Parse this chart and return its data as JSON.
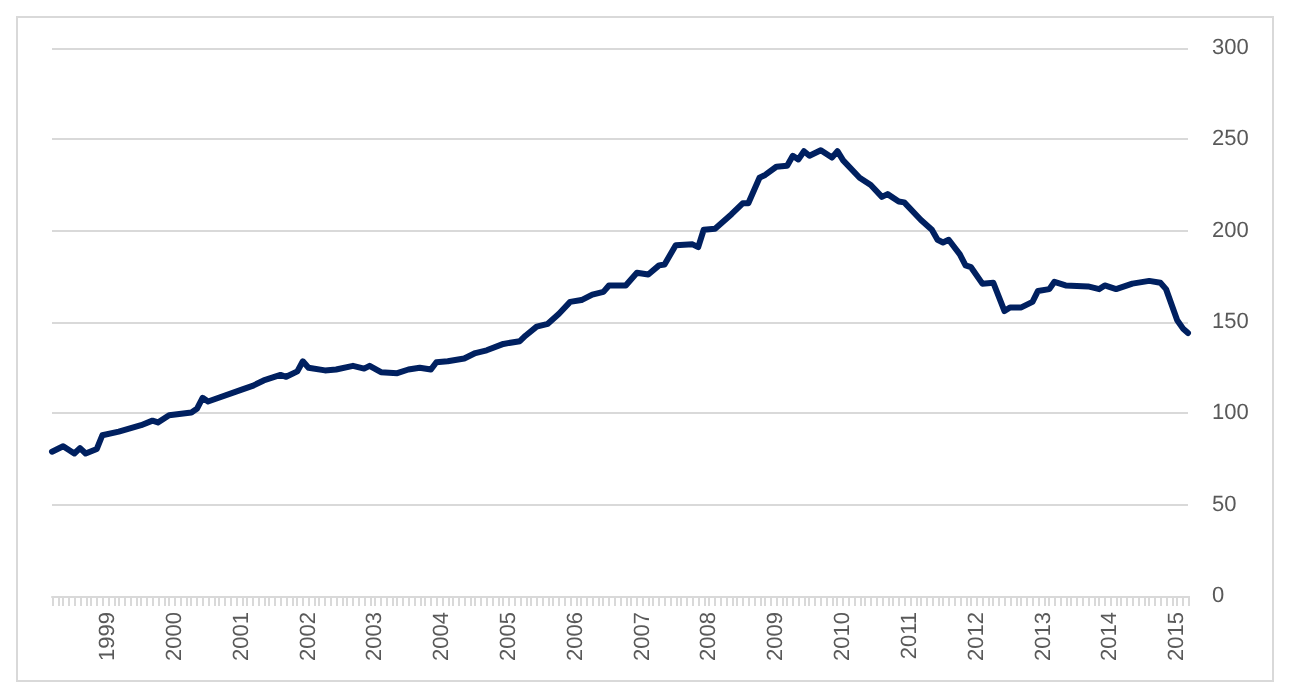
{
  "chart_data": {
    "type": "line",
    "x": [
      "1998-03",
      "1998-05",
      "1998-07",
      "1998-08",
      "1998-09",
      "1998-11",
      "1998-12",
      "1999-03",
      "1999-07",
      "1999-09",
      "1999-10",
      "1999-12",
      "2000-04",
      "2000-05",
      "2000-06",
      "2000-07",
      "2001-01",
      "2001-03",
      "2001-05",
      "2001-08",
      "2001-09",
      "2001-11",
      "2001-12",
      "2002-01",
      "2002-04",
      "2002-06",
      "2002-09",
      "2002-11",
      "2002-12",
      "2003-02",
      "2003-05",
      "2003-07",
      "2003-09",
      "2003-11",
      "2003-12",
      "2004-02",
      "2004-05",
      "2004-07",
      "2004-09",
      "2004-12",
      "2005-03",
      "2005-04",
      "2005-06",
      "2005-08",
      "2005-10",
      "2005-12",
      "2006-02",
      "2006-04",
      "2006-06",
      "2006-07",
      "2006-10",
      "2006-12",
      "2007-02",
      "2007-04",
      "2007-05",
      "2007-07",
      "2007-10",
      "2007-11",
      "2007-12",
      "2008-02",
      "2008-05",
      "2008-07",
      "2008-08",
      "2008-10",
      "2008-11",
      "2009-01",
      "2009-03",
      "2009-04",
      "2009-05",
      "2009-06",
      "2009-07",
      "2009-09",
      "2009-11",
      "2009-12",
      "2010-01",
      "2010-04",
      "2010-06",
      "2010-08",
      "2010-09",
      "2010-11",
      "2010-12",
      "2011-03",
      "2011-05",
      "2011-06",
      "2011-07",
      "2011-08",
      "2011-10",
      "2011-11",
      "2011-12",
      "2012-02",
      "2012-04",
      "2012-06",
      "2012-07",
      "2012-09",
      "2012-11",
      "2012-12",
      "2013-02",
      "2013-03",
      "2013-05",
      "2013-09",
      "2013-11",
      "2013-12",
      "2014-02",
      "2014-05",
      "2014-08",
      "2014-10",
      "2014-11",
      "2015-01",
      "2015-02",
      "2015-03"
    ],
    "series": [
      {
        "color": "#002060",
        "values": [
          79,
          82,
          78,
          81,
          78,
          80.5,
          88,
          90,
          93.5,
          96,
          95,
          99,
          100.5,
          102.5,
          108.5,
          106.5,
          113,
          115,
          118,
          121,
          120,
          123,
          128.5,
          125,
          123.5,
          124,
          126,
          124.5,
          126,
          122.5,
          122,
          124,
          125,
          124,
          128,
          128.5,
          130,
          133,
          134.5,
          138,
          139.5,
          142.5,
          147.5,
          149,
          154.5,
          161,
          162,
          165,
          166.5,
          170,
          170,
          177,
          176,
          181,
          181.5,
          192,
          192.5,
          191,
          200.5,
          201,
          209,
          215,
          215,
          229,
          230.5,
          235,
          235.5,
          241,
          239,
          243.5,
          241,
          244,
          240,
          243.5,
          238.5,
          229,
          225,
          218.5,
          220,
          216,
          215.5,
          206,
          200.5,
          195,
          193.5,
          195,
          187,
          181,
          180,
          171,
          171.5,
          156,
          158,
          158,
          161,
          167,
          168,
          172,
          170,
          169.5,
          168,
          170,
          168,
          171,
          172.5,
          171.5,
          168,
          151,
          146.5,
          144
        ]
      }
    ],
    "xlim": [
      "1998-03",
      "2015-03"
    ],
    "xticks": [
      {
        "value": "1999-01",
        "label": "1999"
      },
      {
        "value": "2000-01",
        "label": "2000"
      },
      {
        "value": "2001-01",
        "label": "2001"
      },
      {
        "value": "2002-01",
        "label": "2002"
      },
      {
        "value": "2003-01",
        "label": "2003"
      },
      {
        "value": "2004-01",
        "label": "2004"
      },
      {
        "value": "2005-01",
        "label": "2005"
      },
      {
        "value": "2006-01",
        "label": "2006"
      },
      {
        "value": "2007-01",
        "label": "2007"
      },
      {
        "value": "2008-01",
        "label": "2008"
      },
      {
        "value": "2009-01",
        "label": "2009"
      },
      {
        "value": "2010-01",
        "label": "2010"
      },
      {
        "value": "2011-01",
        "label": "2011"
      },
      {
        "value": "2012-01",
        "label": "2012"
      },
      {
        "value": "2013-01",
        "label": "2013"
      },
      {
        "value": "2014-01",
        "label": "2014"
      },
      {
        "value": "2015-01",
        "label": "2015"
      }
    ],
    "ylim": [
      0,
      300
    ],
    "yticks": [
      0,
      50,
      100,
      150,
      200,
      250,
      300
    ],
    "grid": "y",
    "marker": "none",
    "line_style": "solid"
  }
}
